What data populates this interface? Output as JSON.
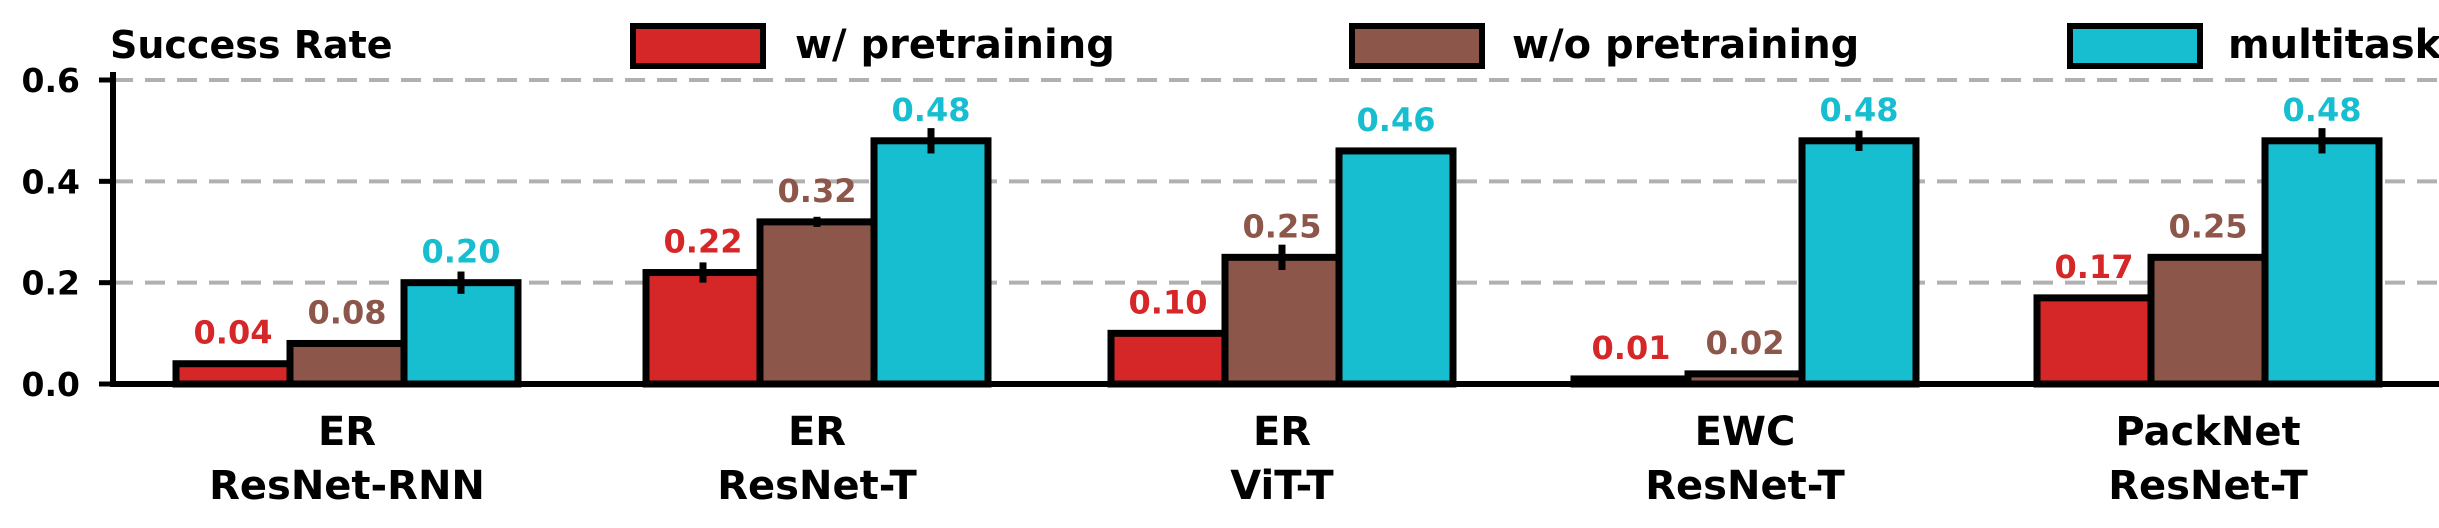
{
  "chart_data": {
    "type": "bar",
    "ylabel": "Success Rate",
    "ylim": [
      0,
      0.6
    ],
    "yticks": [
      "0.0",
      "0.2",
      "0.4",
      "0.6"
    ],
    "ytick_values": [
      0.0,
      0.2,
      0.4,
      0.6
    ],
    "grid": "horizontal dashed",
    "legend_position": "top",
    "categories": [
      [
        "ER",
        "ResNet-RNN"
      ],
      [
        "ER",
        "ResNet-T"
      ],
      [
        "ER",
        "ViT-T"
      ],
      [
        "EWC",
        "ResNet-T"
      ],
      [
        "PackNet",
        "ResNet-T"
      ]
    ],
    "series": [
      {
        "name": "w/ pretraining",
        "color": "#d62728",
        "values": [
          0.04,
          0.22,
          0.1,
          0.01,
          0.17
        ],
        "labels": [
          "0.04",
          "0.22",
          "0.10",
          "0.01",
          "0.17"
        ],
        "errors": [
          0.004,
          0.02,
          0.0,
          0.0,
          0.0
        ]
      },
      {
        "name": "w/o pretraining",
        "color": "#8c564b",
        "values": [
          0.08,
          0.32,
          0.25,
          0.02,
          0.25
        ],
        "labels": [
          "0.08",
          "0.32",
          "0.25",
          "0.02",
          "0.25"
        ],
        "errors": [
          0.006,
          0.01,
          0.025,
          0.0,
          0.0
        ]
      },
      {
        "name": "multitask",
        "color": "#17becf",
        "values": [
          0.2,
          0.48,
          0.46,
          0.48,
          0.48
        ],
        "labels": [
          "0.20",
          "0.48",
          "0.46",
          "0.48",
          "0.48"
        ],
        "errors": [
          0.022,
          0.025,
          0.004,
          0.02,
          0.025
        ]
      }
    ]
  }
}
